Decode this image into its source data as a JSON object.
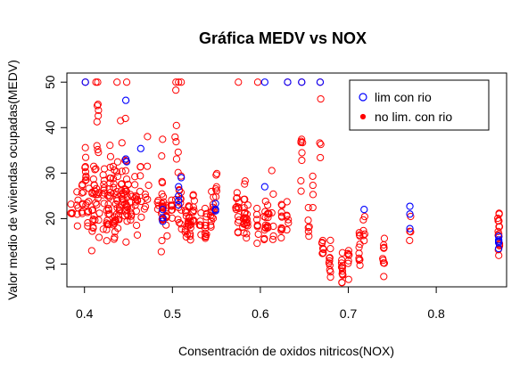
{
  "chart_data": {
    "type": "scatter",
    "title": "Gráfica MEDV vs NOX",
    "xlabel": "Consentración de oxidos nitricos(NOX)",
    "ylabel": "Valor medio de viviendas ocupadas(MEDV)",
    "xlim": [
      0.38,
      0.88
    ],
    "ylim": [
      5,
      52
    ],
    "x_ticks": [
      0.4,
      0.5,
      0.6,
      0.7,
      0.8
    ],
    "y_ticks": [
      10,
      20,
      30,
      40,
      50
    ],
    "grid": false,
    "legend_position": "top-right",
    "series": [
      {
        "name": "lim con rio",
        "color": "#0000ff",
        "marker": "open-circle",
        "points": [
          [
            0.401,
            50.0
          ],
          [
            0.447,
            46.0
          ],
          [
            0.447,
            33.1
          ],
          [
            0.448,
            32.5
          ],
          [
            0.464,
            35.4
          ],
          [
            0.489,
            22.0
          ],
          [
            0.489,
            20.2
          ],
          [
            0.489,
            19.4
          ],
          [
            0.507,
            25.0
          ],
          [
            0.507,
            27.0
          ],
          [
            0.507,
            24.0
          ],
          [
            0.507,
            23.0
          ],
          [
            0.51,
            29.0
          ],
          [
            0.549,
            23.3
          ],
          [
            0.549,
            22.0
          ],
          [
            0.549,
            21.7
          ],
          [
            0.605,
            27.0
          ],
          [
            0.605,
            50.0
          ],
          [
            0.631,
            50.0
          ],
          [
            0.647,
            50.0
          ],
          [
            0.668,
            50.0
          ],
          [
            0.718,
            22.0
          ],
          [
            0.77,
            22.7
          ],
          [
            0.77,
            21.0
          ],
          [
            0.77,
            17.8
          ],
          [
            0.871,
            15.3
          ],
          [
            0.871,
            16.1
          ],
          [
            0.871,
            13.4
          ],
          [
            0.871,
            14.7
          ],
          [
            0.871,
            15.0
          ]
        ]
      },
      {
        "name": "no lim. con rio",
        "color": "#ff0000",
        "marker": "open-circle",
        "points": []
      }
    ]
  }
}
